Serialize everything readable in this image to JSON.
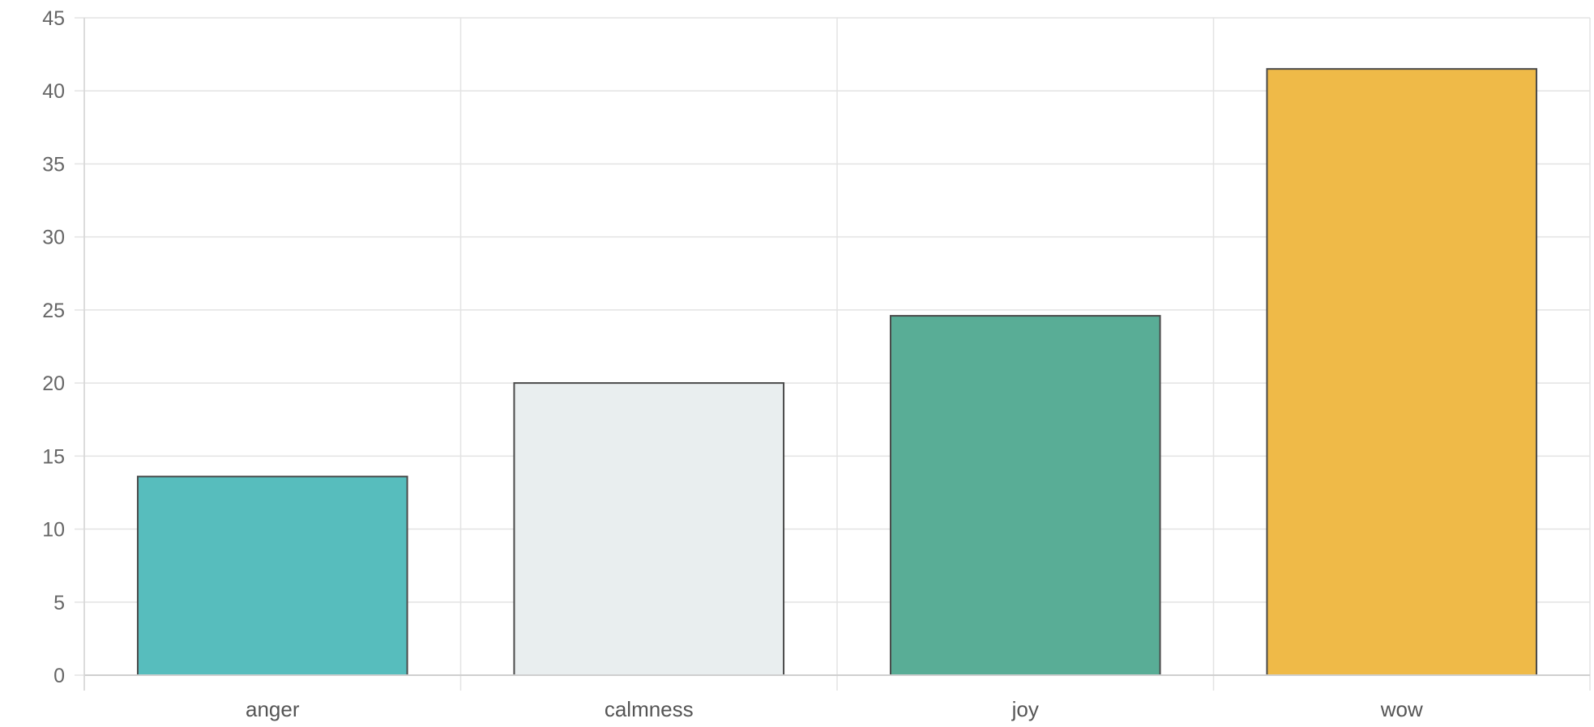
{
  "chart_data": {
    "type": "bar",
    "categories": [
      "anger",
      "calmness",
      "joy",
      "wow"
    ],
    "values": [
      13.6,
      20.0,
      24.6,
      41.5
    ],
    "colors": [
      "#57bdbd",
      "#e9eeef",
      "#59ad96",
      "#efba48"
    ],
    "ylim": [
      0,
      45
    ],
    "yticks": [
      0,
      5,
      10,
      15,
      20,
      25,
      30,
      35,
      40,
      45
    ],
    "xlabel": "",
    "ylabel": "",
    "grid": true,
    "legend": "none"
  }
}
